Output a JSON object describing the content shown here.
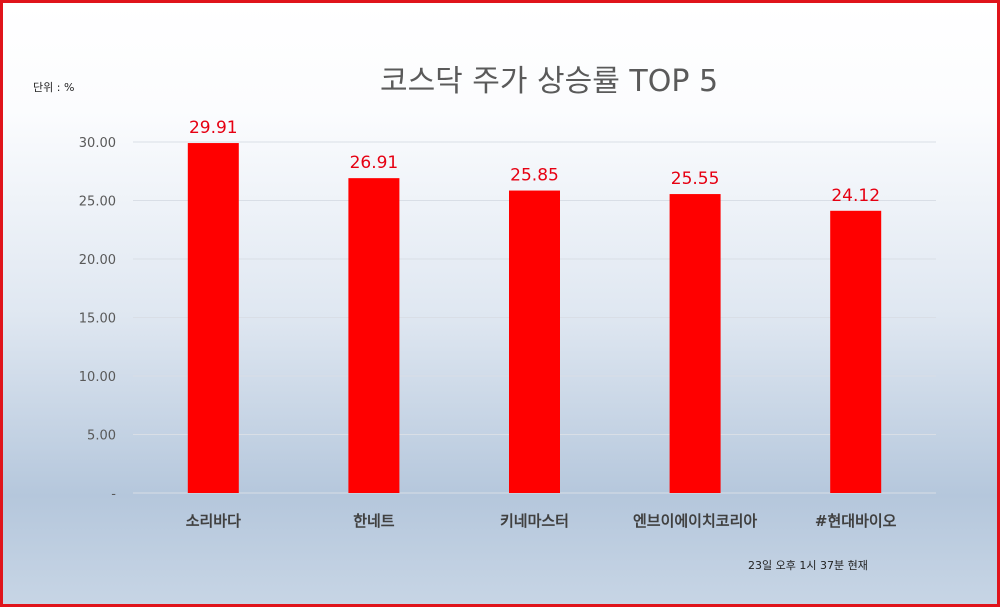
{
  "chart_data": {
    "type": "bar",
    "title": "코스닥 주가 상승률 TOP 5",
    "unit_label": "단위 : %",
    "footnote": "23일 오후 1시 37분 현재",
    "categories": [
      "소리바다",
      "한네트",
      "키네마스터",
      "엔브이에이치코리아",
      "#현대바이오"
    ],
    "values": [
      29.91,
      26.91,
      25.85,
      25.55,
      24.12
    ],
    "value_labels": [
      "29.91",
      "26.91",
      "25.85",
      "25.55",
      "24.12"
    ],
    "ylim": [
      0,
      30
    ],
    "yticks": [
      0,
      5,
      10,
      15,
      20,
      25,
      30
    ],
    "ytick_labels": [
      "-",
      "5.00",
      "10.00",
      "15.00",
      "20.00",
      "25.00",
      "30.00"
    ],
    "grid": true,
    "bar_color": "#ff0000",
    "label_color": "#e60012",
    "border_color": "#e0141b"
  }
}
